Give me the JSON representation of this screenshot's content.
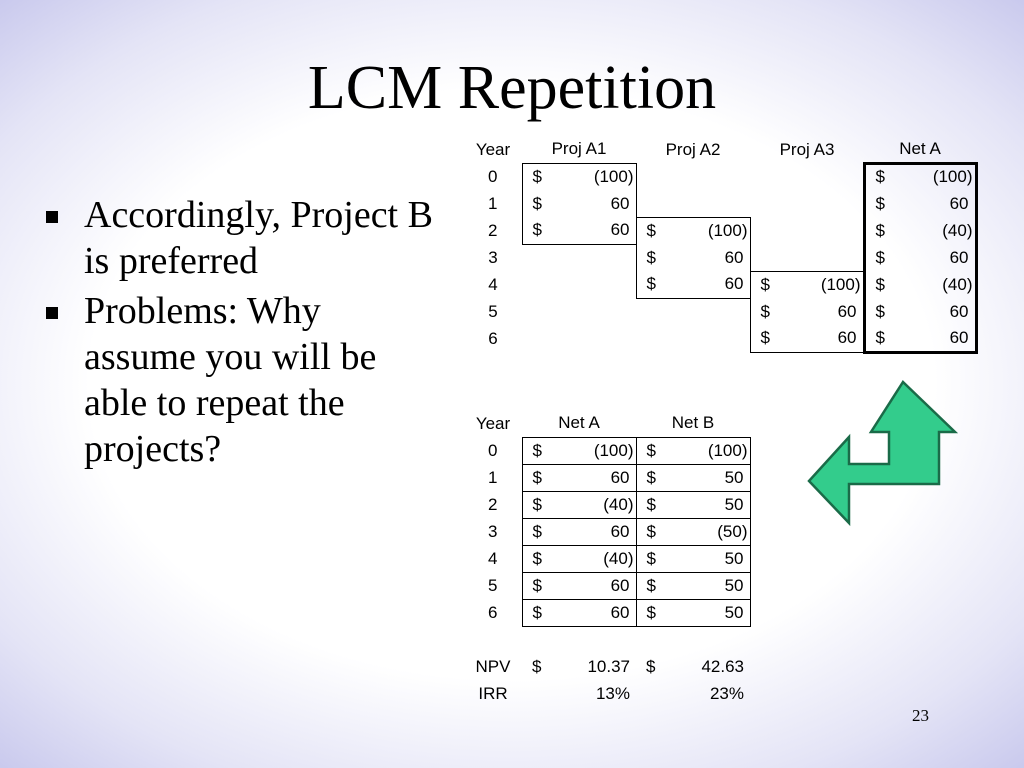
{
  "slide": {
    "title": "LCM Repetition",
    "bullets": [
      "Accordingly, Project B is preferred",
      "Problems: Why assume you will be able to repeat the projects?"
    ],
    "slide_number": "23"
  },
  "table1": {
    "headers": [
      "Year",
      "Proj A1",
      "Proj A2",
      "Proj A3",
      "Net A"
    ],
    "rows": [
      {
        "year": "0",
        "a1": "(100)",
        "a2": "",
        "a3": "",
        "net": "(100)"
      },
      {
        "year": "1",
        "a1": "60",
        "a2": "",
        "a3": "",
        "net": "60"
      },
      {
        "year": "2",
        "a1": "60",
        "a2": "(100)",
        "a3": "",
        "net": "(40)"
      },
      {
        "year": "3",
        "a1": "",
        "a2": "60",
        "a3": "",
        "net": "60"
      },
      {
        "year": "4",
        "a1": "",
        "a2": "60",
        "a3": "(100)",
        "net": "(40)"
      },
      {
        "year": "5",
        "a1": "",
        "a2": "",
        "a3": "60",
        "net": "60"
      },
      {
        "year": "6",
        "a1": "",
        "a2": "",
        "a3": "60",
        "net": "60"
      }
    ]
  },
  "table2": {
    "headers": [
      "Year",
      "Net A",
      "Net B"
    ],
    "rows": [
      {
        "year": "0",
        "a": "(100)",
        "b": "(100)"
      },
      {
        "year": "1",
        "a": "60",
        "b": "50"
      },
      {
        "year": "2",
        "a": "(40)",
        "b": "50"
      },
      {
        "year": "3",
        "a": "60",
        "b": "(50)"
      },
      {
        "year": "4",
        "a": "(40)",
        "b": "50"
      },
      {
        "year": "5",
        "a": "60",
        "b": "50"
      },
      {
        "year": "6",
        "a": "60",
        "b": "50"
      }
    ],
    "npv": {
      "label": "NPV",
      "a": "10.37",
      "b": "42.63"
    },
    "irr": {
      "label": "IRR",
      "a": "13%",
      "b": "23%"
    }
  },
  "currency_symbol": "$",
  "colors": {
    "arrow_fill": "#33cc8c",
    "arrow_stroke": "#1a6b48"
  }
}
